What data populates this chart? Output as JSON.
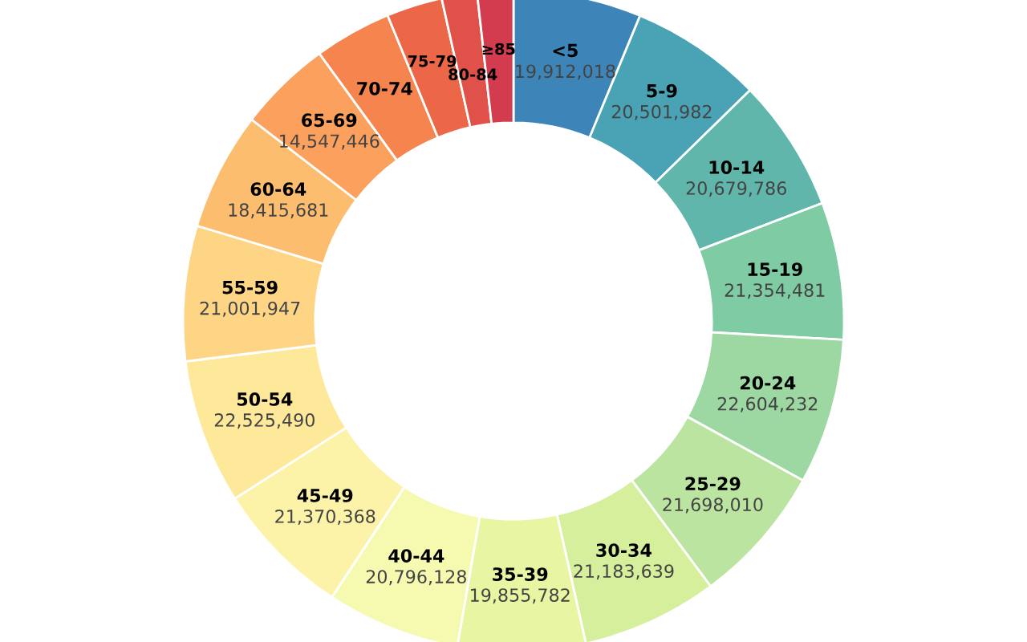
{
  "chart_data": {
    "type": "donut",
    "categories": [
      "<5",
      "5-9",
      "10-14",
      "15-19",
      "20-24",
      "25-29",
      "30-34",
      "35-39",
      "40-44",
      "45-49",
      "50-54",
      "55-59",
      "60-64",
      "65-69",
      "70-74",
      "75-79",
      "80-84",
      "≥85"
    ],
    "values": [
      19912018,
      20501982,
      20679786,
      21354481,
      22604232,
      21698010,
      21183639,
      19855782,
      20796128,
      21370368,
      22525490,
      21001947,
      18415681,
      14547446,
      12000000,
      8700000,
      5500000,
      5600000
    ],
    "value_labels": [
      "19,912,018",
      "20,501,982",
      "20,679,786",
      "21,354,481",
      "22,604,232",
      "21,698,010",
      "21,183,639",
      "19,855,782",
      "20,796,128",
      "21,370,368",
      "22,525,490",
      "21,001,947",
      "18,415,681",
      "14,547,446",
      null,
      null,
      null,
      null
    ],
    "colors": [
      "#3d85b8",
      "#4aa3b4",
      "#60b6ab",
      "#7ecba4",
      "#9dd7a2",
      "#bbe4a0",
      "#d6ef9d",
      "#e8f6a3",
      "#f5fab0",
      "#fdf3a8",
      "#fee99a",
      "#fed585",
      "#fdbd6f",
      "#fca05d",
      "#f6844f",
      "#eb6748",
      "#e0514a",
      "#d33c4e"
    ],
    "legend": false
  }
}
